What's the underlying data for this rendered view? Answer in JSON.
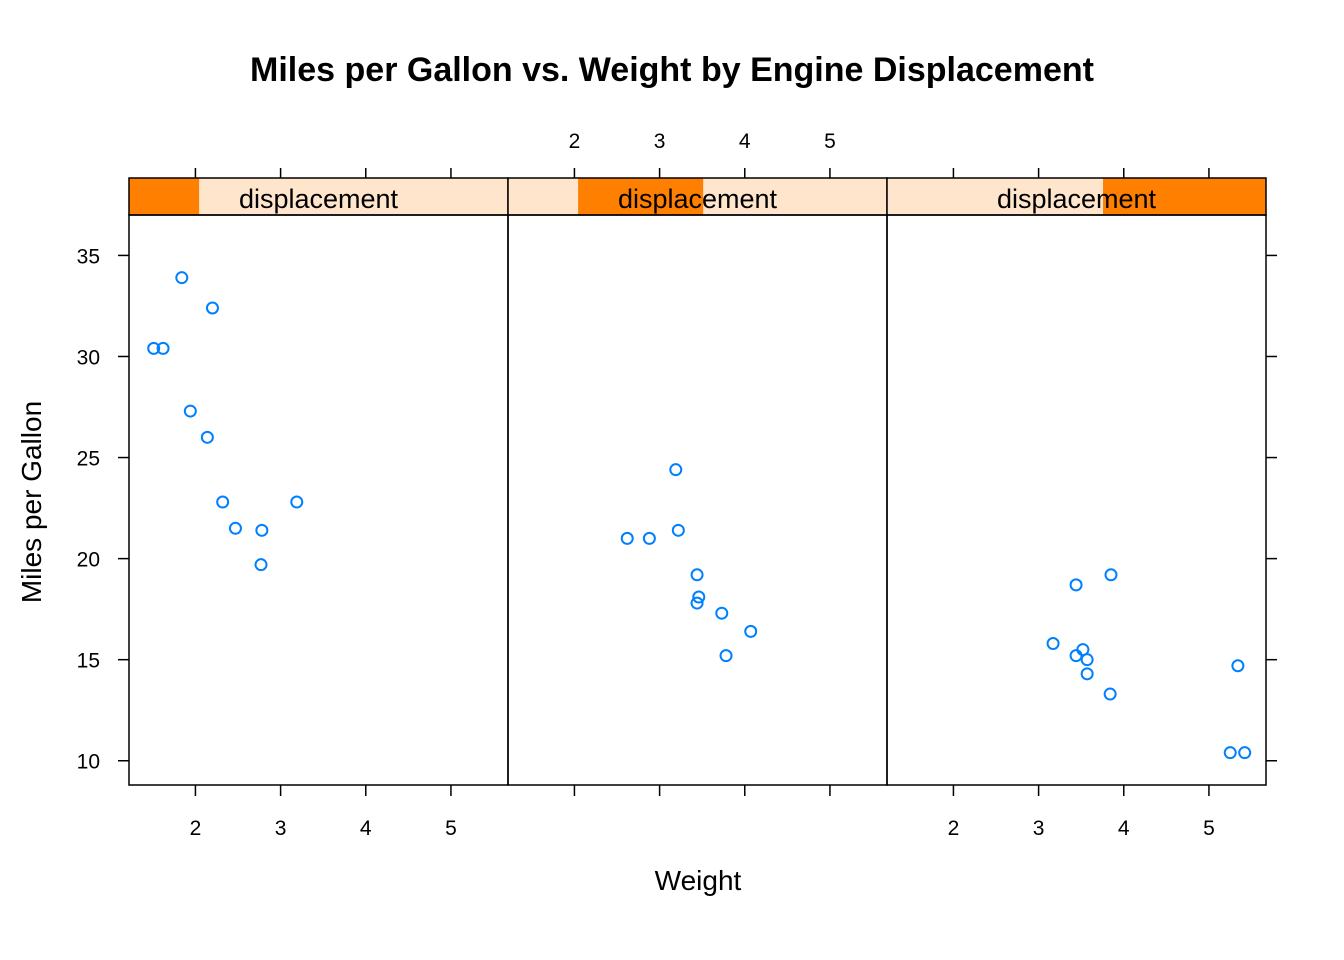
{
  "colors": {
    "point": "#0080FF",
    "strip_bg": "#FFE5CC",
    "strip_fill": "#FF7F00"
  },
  "chart_data": {
    "type": "scatter",
    "title": "Miles per Gallon vs. Weight by Engine Displacement",
    "xlabel": "Weight",
    "ylabel": "Miles per Gallon",
    "xlim": [
      1.22,
      5.67
    ],
    "ylim": [
      8.8,
      37.0
    ],
    "x_ticks": [
      2,
      3,
      4,
      5
    ],
    "y_ticks": [
      10,
      15,
      20,
      25,
      30,
      35
    ],
    "grid": false,
    "panels": [
      {
        "strip_label": "displacement",
        "shingle_range": [
          0.0,
          0.185
        ],
        "points": [
          {
            "x": 1.51,
            "y": 30.4
          },
          {
            "x": 1.62,
            "y": 30.4
          },
          {
            "x": 1.84,
            "y": 33.9
          },
          {
            "x": 1.94,
            "y": 27.3
          },
          {
            "x": 2.14,
            "y": 26.0
          },
          {
            "x": 2.2,
            "y": 32.4
          },
          {
            "x": 2.32,
            "y": 22.8
          },
          {
            "x": 2.47,
            "y": 21.5
          },
          {
            "x": 2.78,
            "y": 21.4
          },
          {
            "x": 2.77,
            "y": 19.7
          },
          {
            "x": 3.19,
            "y": 22.8
          }
        ]
      },
      {
        "strip_label": "displacement",
        "shingle_range": [
          0.185,
          0.515
        ],
        "points": [
          {
            "x": 2.62,
            "y": 21.0
          },
          {
            "x": 2.88,
            "y": 21.0
          },
          {
            "x": 3.19,
            "y": 24.4
          },
          {
            "x": 3.22,
            "y": 21.4
          },
          {
            "x": 3.44,
            "y": 19.2
          },
          {
            "x": 3.46,
            "y": 18.1
          },
          {
            "x": 3.44,
            "y": 17.8
          },
          {
            "x": 3.73,
            "y": 17.3
          },
          {
            "x": 3.78,
            "y": 15.2
          },
          {
            "x": 4.07,
            "y": 16.4
          }
        ]
      },
      {
        "strip_label": "displacement",
        "shingle_range": [
          0.57,
          1.0
        ],
        "points": [
          {
            "x": 3.17,
            "y": 15.8
          },
          {
            "x": 3.44,
            "y": 18.7
          },
          {
            "x": 3.85,
            "y": 19.2
          },
          {
            "x": 3.44,
            "y": 15.2
          },
          {
            "x": 3.52,
            "y": 15.5
          },
          {
            "x": 3.57,
            "y": 15.0
          },
          {
            "x": 3.57,
            "y": 14.3
          },
          {
            "x": 3.84,
            "y": 13.3
          },
          {
            "x": 5.34,
            "y": 14.7
          },
          {
            "x": 5.25,
            "y": 10.4
          },
          {
            "x": 5.42,
            "y": 10.4
          }
        ]
      }
    ]
  }
}
